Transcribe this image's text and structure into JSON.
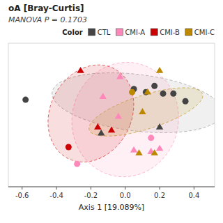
{
  "chart_data": {
    "type": "scatter",
    "title": "oA [Bray-Curtis]",
    "subtitle": "MANOVA P = 0.1703",
    "xlabel": "Axis 1 [19.089%]",
    "xlim": [
      -0.68,
      0.52
    ],
    "ylim": [
      -0.52,
      0.42
    ],
    "xticks": [
      -0.6,
      -0.4,
      -0.2,
      {
        "value": 0,
        "label": "0.0"
      },
      0.2,
      0.4
    ],
    "tick_labels": "x",
    "grid": false,
    "legend": "upper right",
    "legend_title": "Color",
    "series": [
      {
        "name": "CTL",
        "color": "#444444",
        "marker": "circle",
        "x": [
          -0.58,
          0.05,
          0.12,
          0.17,
          0.22,
          0.28,
          0.35
        ],
        "values": [
          0.05,
          0.12,
          0.1,
          0.14,
          0.09,
          0.09,
          0.04
        ]
      },
      {
        "name": "CTL",
        "color": "#444444",
        "marker": "triangle",
        "x": [
          -0.14,
          0.2
        ],
        "values": [
          -0.17,
          -0.13
        ]
      },
      {
        "name": "CMI-A",
        "color": "#FF88BB",
        "marker": "circle",
        "x": [
          -0.28,
          0.15
        ],
        "values": [
          -0.37,
          -0.2
        ]
      },
      {
        "name": "CMI-A",
        "color": "#FF88BB",
        "marker": "triangle",
        "x": [
          -0.03,
          -0.13,
          -0.04,
          0.05,
          0.15,
          0.2
        ],
        "values": [
          0.2,
          0.07,
          -0.06,
          -0.28,
          -0.29,
          -0.27
        ]
      },
      {
        "name": "CMI-B",
        "color": "#CC0000",
        "marker": "circle",
        "x": [
          -0.33
        ],
        "values": [
          -0.26
        ]
      },
      {
        "name": "CMI-B",
        "color": "#CC0000",
        "marker": "triangle",
        "x": [
          -0.26,
          -0.16,
          -0.08
        ],
        "values": [
          0.24,
          -0.13,
          -0.15
        ]
      },
      {
        "name": "CMI-C",
        "color": "#BB8800",
        "marker": "circle",
        "x": [
          0.04
        ],
        "values": [
          0.1
        ]
      },
      {
        "name": "CMI-C",
        "color": "#BB8800",
        "marker": "triangle",
        "x": [
          0.2,
          0.13,
          0.1,
          0.08,
          0.17
        ],
        "values": [
          0.24,
          0.1,
          -0.03,
          -0.3,
          -0.3
        ]
      }
    ],
    "ellipses": [
      {
        "name": "CTL",
        "cx": 0.07,
        "cy": 0.03,
        "w": 1.0,
        "h": 0.37,
        "angle": -8,
        "color": "#888888"
      },
      {
        "name": "CMI-A",
        "cx": 0.0,
        "cy": -0.08,
        "w": 0.62,
        "h": 0.75,
        "angle": -5,
        "color": "#FF88BB"
      },
      {
        "name": "CMI-B",
        "cx": -0.2,
        "cy": -0.04,
        "w": 0.48,
        "h": 0.65,
        "angle": -18,
        "color": "#CC0000"
      },
      {
        "name": "CMI-C",
        "cx": 0.12,
        "cy": -0.03,
        "w": 0.22,
        "h": 0.7,
        "angle": -70,
        "color": "#BB8800"
      }
    ]
  }
}
